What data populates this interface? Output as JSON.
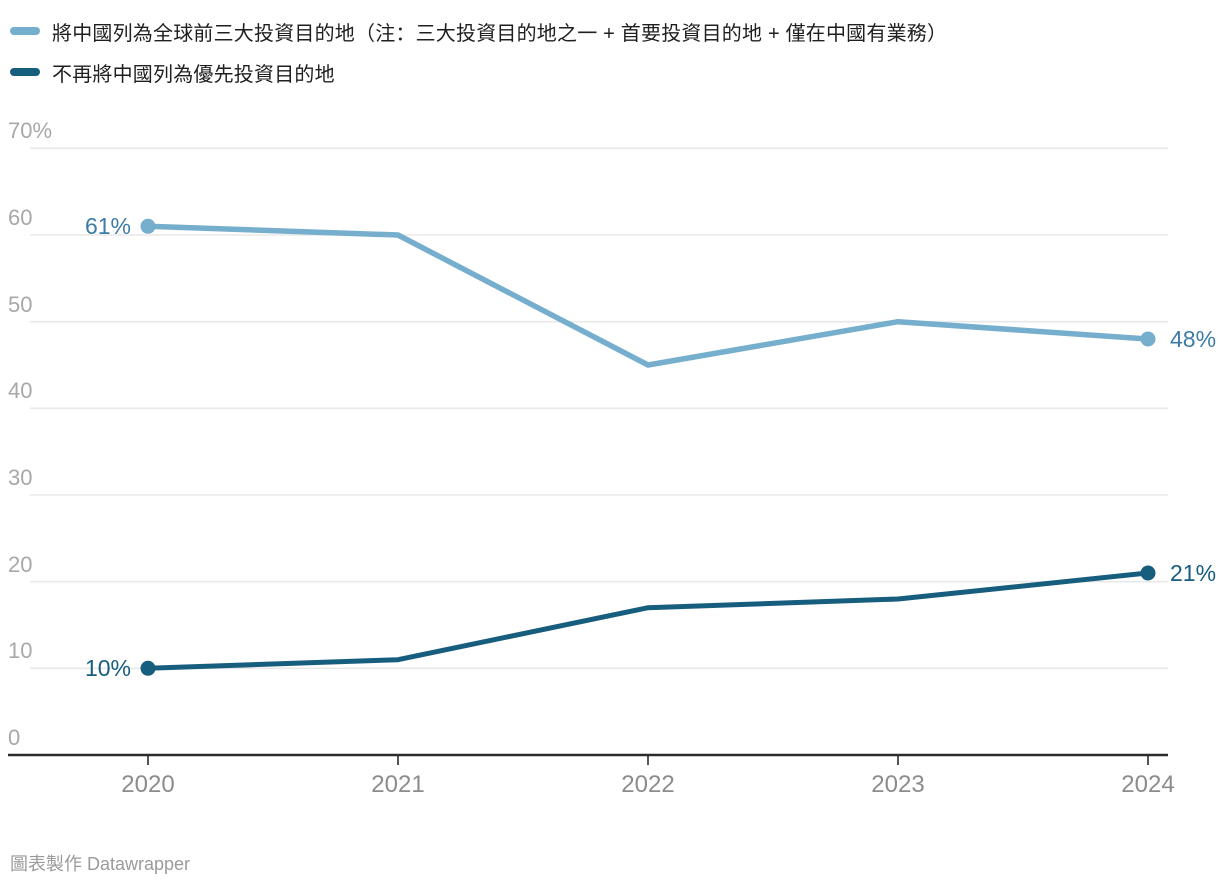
{
  "legend": {
    "items": [
      {
        "label": "將中國列為全球前三大投資目的地（注：三大投資目的地之一 + 首要投資目的地 + 僅在中國有業務）",
        "color": "#76aecd"
      },
      {
        "label": "不再將中國列為優先投資目的地",
        "color": "#175d7d"
      }
    ]
  },
  "footer": {
    "credit": "圖表製作 Datawrapper"
  },
  "chart_data": {
    "type": "line",
    "title": "",
    "xlabel": "",
    "ylabel": "",
    "ylim": [
      0,
      70
    ],
    "grid": true,
    "legend_position": "top",
    "categories": [
      "2020",
      "2021",
      "2022",
      "2023",
      "2024"
    ],
    "yticks": [
      {
        "v": 70,
        "label": "70%"
      },
      {
        "v": 60,
        "label": "60"
      },
      {
        "v": 50,
        "label": "50"
      },
      {
        "v": 40,
        "label": "40"
      },
      {
        "v": 30,
        "label": "30"
      },
      {
        "v": 20,
        "label": "20"
      },
      {
        "v": 10,
        "label": "10"
      },
      {
        "v": 0,
        "label": "0"
      }
    ],
    "series": [
      {
        "name": "將中國列為全球前三大投資目的地（注：三大投資目的地之一 + 首要投資目的地 + 僅在中國有業務）",
        "color": "#76aecd",
        "label_color": "#3d7ca6",
        "values": [
          61,
          60,
          45,
          50,
          48
        ],
        "start_label": "61%",
        "end_label": "48%"
      },
      {
        "name": "不再將中國列為優先投資目的地",
        "color": "#175d7d",
        "label_color": "#175d7d",
        "values": [
          10,
          11,
          17,
          18,
          21
        ],
        "start_label": "10%",
        "end_label": "21%"
      }
    ],
    "colors": {
      "gridline": "#e8e8e8",
      "axis": "#2b2b2b",
      "ytick_text": "#a8a8a8",
      "xtick_text": "#8c8c8c"
    }
  }
}
